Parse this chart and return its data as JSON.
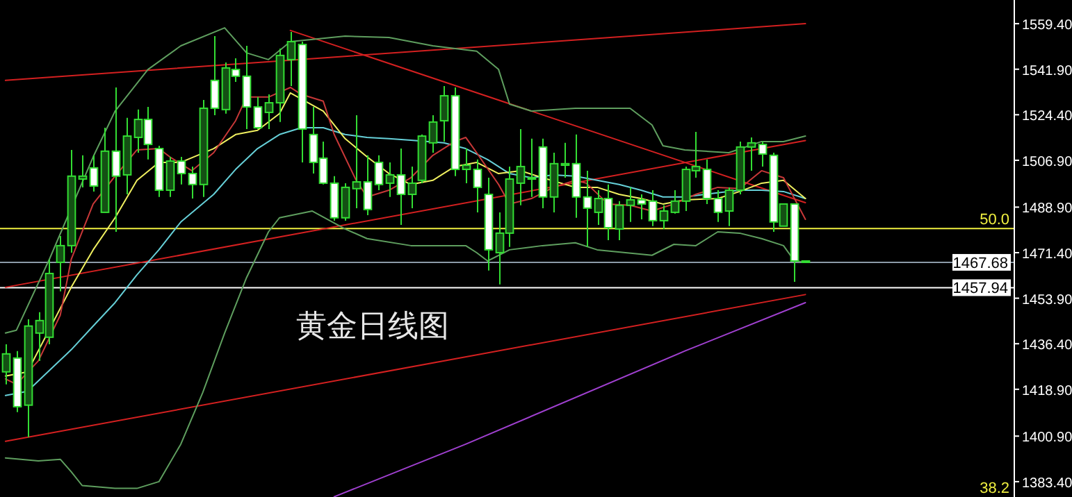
{
  "chart_data": {
    "type": "candlestick",
    "color": "#33dd33",
    "tick_labels": "y",
    "categories": [
      null,
      null,
      null,
      null,
      null,
      null,
      null,
      null,
      null,
      null,
      null,
      null,
      null,
      null,
      null,
      null,
      null,
      null,
      null,
      null,
      null,
      null,
      null,
      null,
      null,
      null,
      null,
      null,
      null,
      null,
      null,
      null,
      null,
      null,
      null,
      null,
      null,
      null,
      null,
      null,
      null,
      null,
      null,
      null,
      null,
      null,
      null,
      null,
      null,
      null,
      null,
      null,
      null,
      null,
      null,
      null,
      null,
      null,
      null,
      null,
      null,
      null,
      null,
      null,
      null,
      null,
      null,
      null,
      null,
      null,
      null,
      null,
      null,
      null
    ],
    "ylim": [
      1377.5,
      1568.5
    ],
    "yticks": [
      {
        "value": 1559.4,
        "label": "1559.40"
      },
      {
        "value": 1541.9,
        "label": "1541.90"
      },
      {
        "value": 1524.4,
        "label": "1524.40"
      },
      {
        "value": 1506.9,
        "label": "1506.90"
      },
      {
        "value": 1488.9,
        "label": "1488.90"
      },
      {
        "value": 1471.4,
        "label": "1471.40"
      },
      {
        "value": 1453.9,
        "label": "1453.90"
      },
      {
        "value": 1436.4,
        "label": "1436.40"
      },
      {
        "value": 1418.9,
        "label": "1418.90"
      },
      {
        "value": 1400.9,
        "label": "1400.90"
      },
      {
        "value": 1383.4,
        "label": "1383.40"
      }
    ],
    "ohlc": [
      [
        1425.6,
        1436.2,
        1420.8,
        1432.5
      ],
      [
        1430.9,
        1433.6,
        1410.1,
        1412.2
      ],
      [
        1412.8,
        1445.8,
        1400.5,
        1443.2
      ],
      [
        1440.5,
        1448.5,
        1429.8,
        1445.3
      ],
      [
        1438.9,
        1468.8,
        1436.2,
        1463.4
      ],
      [
        1467.7,
        1477.8,
        1456.5,
        1474.1
      ],
      [
        1474.1,
        1510.9,
        1471.4,
        1500.8
      ],
      [
        1499.7,
        1508.8,
        1496.5,
        1500.8
      ],
      [
        1504.0,
        1508.8,
        1494.9,
        1497.0
      ],
      [
        1486.9,
        1519.4,
        1486.9,
        1510.4
      ],
      [
        1510.4,
        1534.9,
        1479.4,
        1500.8
      ],
      [
        1501.3,
        1523.2,
        1493.8,
        1516.2
      ],
      [
        1515.7,
        1526.4,
        1509.8,
        1522.6
      ],
      [
        1522.6,
        1527.4,
        1507.2,
        1513.0
      ],
      [
        1511.4,
        1512.5,
        1492.8,
        1495.4
      ],
      [
        1495.4,
        1508.2,
        1492.8,
        1506.6
      ],
      [
        1506.6,
        1508.2,
        1497.6,
        1501.8
      ],
      [
        1501.8,
        1504.5,
        1492.2,
        1497.6
      ],
      [
        1497.6,
        1530.1,
        1492.8,
        1526.9
      ],
      [
        1537.6,
        1554.6,
        1524.2,
        1526.9
      ],
      [
        1526.4,
        1544.5,
        1524.8,
        1542.4
      ],
      [
        1541.8,
        1546.1,
        1537.0,
        1539.2
      ],
      [
        1539.2,
        1550.9,
        1518.9,
        1527.4
      ],
      [
        1527.4,
        1531.2,
        1518.9,
        1519.4
      ],
      [
        1525.3,
        1532.2,
        1518.9,
        1529.0
      ],
      [
        1529.0,
        1549.8,
        1521.6,
        1547.2
      ],
      [
        1545.6,
        1556.2,
        1535.4,
        1552.5
      ],
      [
        1551.4,
        1552.5,
        1506.1,
        1518.9
      ],
      [
        1516.8,
        1527.4,
        1501.8,
        1506.1
      ],
      [
        1507.7,
        1514.1,
        1497.6,
        1498.1
      ],
      [
        1498.1,
        1500.8,
        1483.7,
        1484.8
      ],
      [
        1484.8,
        1498.1,
        1483.7,
        1496.5
      ],
      [
        1496.0,
        1524.2,
        1488.5,
        1498.6
      ],
      [
        1498.6,
        1508.8,
        1485.8,
        1488.0
      ],
      [
        1506.1,
        1508.8,
        1495.4,
        1497.6
      ],
      [
        1498.1,
        1506.1,
        1492.8,
        1501.3
      ],
      [
        1501.3,
        1511.4,
        1482.1,
        1493.8
      ],
      [
        1493.8,
        1504.5,
        1488.5,
        1498.1
      ],
      [
        1499.2,
        1516.8,
        1498.1,
        1516.2
      ],
      [
        1513.6,
        1524.2,
        1509.8,
        1521.6
      ],
      [
        1522.1,
        1535.4,
        1514.1,
        1531.7
      ],
      [
        1531.7,
        1534.9,
        1500.8,
        1503.4
      ],
      [
        1503.4,
        1511.4,
        1498.1,
        1505.0
      ],
      [
        1503.4,
        1507.2,
        1486.9,
        1496.5
      ],
      [
        1493.8,
        1500.2,
        1464.5,
        1472.5
      ],
      [
        1471.4,
        1486.9,
        1459.2,
        1478.9
      ],
      [
        1478.9,
        1504.5,
        1473.6,
        1499.7
      ],
      [
        1498.1,
        1518.9,
        1489.6,
        1504.5
      ],
      [
        1499.7,
        1515.2,
        1492.8,
        1500.2
      ],
      [
        1512.0,
        1515.2,
        1488.5,
        1492.8
      ],
      [
        1492.8,
        1509.8,
        1486.9,
        1505.6
      ],
      [
        1505.0,
        1513.6,
        1500.2,
        1505.6
      ],
      [
        1505.6,
        1516.8,
        1484.8,
        1492.8
      ],
      [
        1492.8,
        1502.9,
        1473.6,
        1488.5
      ],
      [
        1486.9,
        1495.4,
        1482.1,
        1492.2
      ],
      [
        1492.2,
        1497.6,
        1476.2,
        1481.0
      ],
      [
        1480.5,
        1491.2,
        1476.2,
        1489.6
      ],
      [
        1489.6,
        1496.5,
        1483.2,
        1491.7
      ],
      [
        1491.7,
        1493.8,
        1484.2,
        1490.1
      ],
      [
        1491.2,
        1495.4,
        1481.6,
        1483.7
      ],
      [
        1483.7,
        1489.6,
        1480.5,
        1487.4
      ],
      [
        1486.9,
        1495.4,
        1486.4,
        1491.2
      ],
      [
        1491.2,
        1504.5,
        1487.4,
        1503.4
      ],
      [
        1502.9,
        1517.8,
        1500.2,
        1504.5
      ],
      [
        1503.4,
        1507.2,
        1490.1,
        1492.2
      ],
      [
        1492.2,
        1495.4,
        1483.2,
        1486.9
      ],
      [
        1487.4,
        1496.5,
        1481.6,
        1495.4
      ],
      [
        1495.4,
        1514.1,
        1493.8,
        1512.0
      ],
      [
        1512.0,
        1515.7,
        1502.9,
        1513.6
      ],
      [
        1513.0,
        1514.1,
        1504.5,
        1509.3
      ],
      [
        1508.8,
        1509.8,
        1479.4,
        1483.2
      ],
      [
        1481.6,
        1490.1,
        1481.6,
        1490.1
      ],
      [
        1490.1,
        1490.1,
        1460.2,
        1468.2
      ],
      [
        1468.2,
        1468.2,
        1467.7,
        1467.7
      ]
    ],
    "series": [
      {
        "type": "line",
        "color": "#d42020",
        "values": [
          1537.6,
          null,
          null,
          null,
          null,
          null,
          null,
          null,
          null,
          null,
          null,
          null,
          null,
          null,
          null,
          null,
          null,
          null,
          null,
          null,
          null,
          null,
          null,
          null,
          null,
          null,
          null,
          null,
          null,
          null,
          null,
          null,
          null,
          null,
          null,
          null,
          null,
          null,
          null,
          null,
          null,
          null,
          null,
          null,
          null,
          null,
          null,
          null,
          null,
          null,
          null,
          null,
          null,
          null,
          null,
          null,
          null,
          null,
          null,
          null,
          null,
          null,
          null,
          null,
          null,
          null,
          null,
          null,
          null,
          null,
          null,
          null,
          null,
          1559.4
        ]
      },
      {
        "type": "line",
        "color": "#d42020",
        "values": [
          null,
          null,
          null,
          null,
          null,
          null,
          null,
          null,
          null,
          null,
          null,
          null,
          null,
          null,
          null,
          null,
          null,
          null,
          null,
          null,
          null,
          null,
          null,
          null,
          null,
          null,
          1556.8,
          null,
          null,
          null,
          null,
          null,
          null,
          null,
          null,
          null,
          null,
          null,
          null,
          null,
          null,
          null,
          null,
          null,
          null,
          null,
          null,
          null,
          null,
          null,
          null,
          null,
          null,
          null,
          null,
          null,
          null,
          null,
          null,
          null,
          null,
          null,
          null,
          null,
          null,
          null,
          null,
          null,
          null,
          null,
          null,
          null,
          null,
          1490.6
        ]
      },
      {
        "type": "line",
        "color": "#d42020",
        "values": [
          1458.1,
          null,
          null,
          null,
          null,
          null,
          null,
          null,
          null,
          null,
          null,
          null,
          null,
          null,
          null,
          null,
          null,
          null,
          null,
          null,
          null,
          null,
          null,
          null,
          null,
          null,
          null,
          null,
          null,
          null,
          null,
          null,
          null,
          null,
          null,
          null,
          null,
          null,
          null,
          null,
          null,
          null,
          null,
          null,
          null,
          null,
          null,
          null,
          null,
          null,
          null,
          null,
          null,
          null,
          null,
          null,
          null,
          null,
          null,
          null,
          null,
          null,
          null,
          null,
          null,
          null,
          null,
          null,
          null,
          null,
          null,
          null,
          null,
          1514.5
        ]
      },
      {
        "type": "line",
        "color": "#d42020",
        "values": [
          1398.9,
          null,
          null,
          null,
          null,
          null,
          null,
          null,
          null,
          null,
          null,
          null,
          null,
          null,
          null,
          null,
          null,
          null,
          null,
          null,
          null,
          null,
          null,
          null,
          null,
          null,
          null,
          null,
          null,
          null,
          null,
          null,
          null,
          null,
          null,
          null,
          null,
          null,
          null,
          null,
          null,
          null,
          null,
          null,
          null,
          null,
          null,
          null,
          null,
          null,
          null,
          null,
          null,
          null,
          null,
          null,
          null,
          null,
          null,
          null,
          null,
          null,
          null,
          null,
          null,
          null,
          null,
          null,
          null,
          null,
          null,
          null,
          null,
          1455.3
        ]
      },
      {
        "type": "line",
        "color": "#a040d0",
        "values": [
          null,
          null,
          null,
          null,
          null,
          null,
          null,
          null,
          null,
          null,
          null,
          null,
          null,
          null,
          null,
          null,
          null,
          null,
          null,
          null,
          null,
          null,
          null,
          null,
          null,
          null,
          null,
          null,
          null,
          null,
          1377.6,
          null,
          null,
          null,
          null,
          null,
          null,
          null,
          null,
          null,
          null,
          null,
          1397.8,
          null,
          null,
          null,
          null,
          null,
          null,
          null,
          null,
          null,
          null,
          null,
          null,
          null,
          null,
          null,
          null,
          null,
          null,
          null,
          1433.6,
          null,
          null,
          null,
          null,
          null,
          null,
          null,
          null,
          null,
          null,
          1452.2
        ]
      },
      {
        "type": "line",
        "color": "#5f9f5f",
        "values": [
          1440.5,
          1441.6,
          null,
          null,
          1468.8,
          null,
          null,
          null,
          1508.2,
          null,
          1525.8,
          null,
          null,
          1541.8,
          null,
          null,
          1550.9,
          null,
          null,
          null,
          1557.8,
          null,
          1548.2,
          null,
          1545.6,
          null,
          1552.5,
          null,
          null,
          null,
          null,
          1554.6,
          null,
          null,
          null,
          1554.1,
          null,
          null,
          null,
          1550.9,
          null,
          null,
          null,
          1548.8,
          null,
          1541.8,
          1528.5,
          null,
          1525.8,
          null,
          null,
          null,
          1526.9,
          null,
          null,
          null,
          null,
          1526.9,
          null,
          1520.5,
          1512.5,
          null,
          1510.9,
          null,
          null,
          null,
          1509.8,
          null,
          null,
          1514.1,
          null,
          1514.1,
          null,
          1516.2
        ]
      },
      {
        "type": "line",
        "color": "#5f9f5f",
        "values": [
          1392.5,
          null,
          null,
          1391.4,
          null,
          1392.0,
          1387.2,
          1381.9,
          null,
          null,
          1380.8,
          null,
          1380.8,
          null,
          1383.4,
          null,
          1397.8,
          null,
          1417.6,
          null,
          1440.5,
          null,
          1461.8,
          null,
          1479.4,
          1484.8,
          null,
          null,
          1487.4,
          null,
          null,
          1480.5,
          null,
          1476.8,
          null,
          null,
          null,
          1474.1,
          null,
          null,
          null,
          null,
          1474.1,
          1471.4,
          1468.2,
          null,
          1472.5,
          null,
          null,
          1474.1,
          null,
          null,
          1475.2,
          null,
          1472.5,
          null,
          null,
          null,
          null,
          1470.4,
          null,
          1474.6,
          null,
          1474.1,
          null,
          1479.4,
          null,
          1478.9,
          null,
          1476.8,
          null,
          1474.1,
          1468.2,
          1467.7
        ]
      },
      {
        "type": "line",
        "color": "#66d0d8",
        "values": [
          1416.5,
          null,
          1418.1,
          null,
          1426.1,
          null,
          1434.1,
          null,
          1443.2,
          null,
          1452.2,
          null,
          1462.9,
          null,
          1472.5,
          null,
          1483.2,
          null,
          null,
          1493.8,
          null,
          1503.4,
          null,
          1511.4,
          null,
          1516.8,
          null,
          1519.4,
          null,
          1519.4,
          null,
          1516.8,
          null,
          1515.7,
          null,
          1515.2,
          null,
          1514.6,
          null,
          null,
          1513.6,
          null,
          1511.4,
          null,
          1507.2,
          null,
          1501.8,
          null,
          1500.2,
          null,
          1501.3,
          null,
          1500.8,
          null,
          1499.2,
          null,
          1497.6,
          null,
          1495.4,
          null,
          1492.8,
          null,
          1492.8,
          null,
          null,
          1494.4,
          null,
          1495.4,
          null,
          1495.4,
          null,
          1494.9,
          null,
          1492.2
        ]
      },
      {
        "type": "line",
        "color": "#f0f060",
        "values": [
          1424.0,
          null,
          1425.6,
          null,
          null,
          null,
          1458.1,
          null,
          1472.5,
          null,
          1484.8,
          null,
          1499.2,
          null,
          1506.1,
          null,
          1506.1,
          null,
          null,
          1511.4,
          null,
          1516.8,
          null,
          1518.4,
          null,
          1524.8,
          1532.8,
          null,
          null,
          1525.8,
          null,
          1515.2,
          null,
          1508.2,
          null,
          1501.8,
          null,
          1497.6,
          null,
          1499.2,
          null,
          1504.5,
          null,
          1506.1,
          null,
          1501.8,
          null,
          1502.9,
          null,
          1500.2,
          null,
          null,
          1496.5,
          null,
          1496.5,
          null,
          1493.8,
          null,
          1492.2,
          null,
          1490.1,
          null,
          1491.7,
          null,
          null,
          1492.2,
          null,
          1494.9,
          null,
          1498.1,
          null,
          1499.2,
          null,
          1492.2
        ]
      },
      {
        "type": "line",
        "color": "#c83838",
        "values": [
          1422.9,
          1420.8,
          null,
          1429.8,
          null,
          1447.4,
          1468.8,
          null,
          1490.1,
          null,
          1500.8,
          null,
          1510.9,
          null,
          1511.4,
          1508.2,
          null,
          1502.9,
          null,
          1509.8,
          null,
          1522.1,
          1531.2,
          null,
          1531.2,
          null,
          1534.9,
          1532.2,
          null,
          1529.6,
          1516.8,
          null,
          1499.2,
          1492.8,
          null,
          1495.4,
          null,
          1500.2,
          null,
          1508.8,
          null,
          1514.1,
          1515.7,
          1509.8,
          null,
          1497.6,
          1490.1,
          null,
          1492.2,
          null,
          1496.5,
          null,
          1499.2,
          1498.1,
          null,
          1490.1,
          null,
          1489.6,
          null,
          1487.4,
          null,
          1490.1,
          null,
          1493.8,
          null,
          1496.5,
          null,
          1496.0,
          null,
          1502.9,
          null,
          1500.2,
          1492.2,
          1484.2
        ]
      }
    ],
    "ref_lines": [
      {
        "axis": "y",
        "value": 1480.7,
        "color": "#f0f040"
      },
      {
        "axis": "y",
        "value": 1467.68,
        "label": "1467.68",
        "color": "#8c9aa8"
      },
      {
        "axis": "y",
        "value": 1457.94,
        "label": "1457.94",
        "color": "#ffffff"
      }
    ],
    "annotations": [
      "黄金日线图",
      {
        "text": "50.0",
        "y": 1480.7
      },
      "38.2"
    ]
  }
}
